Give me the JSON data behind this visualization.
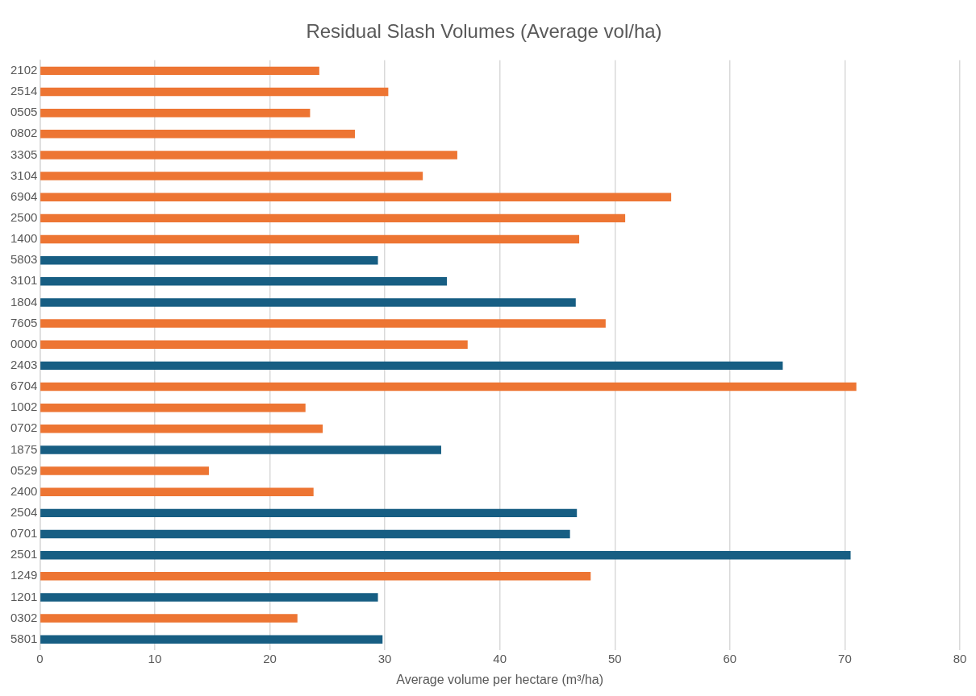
{
  "chart_data": {
    "type": "bar",
    "orientation": "horizontal",
    "title": "Residual Slash Volumes (Average vol/ha)",
    "xlabel": "Average volume per hectare (m³/ha)",
    "categories": [
      "2102",
      "2514",
      "0505",
      "0802",
      "3305",
      "3104",
      "6904",
      "2500",
      "1400",
      "5803",
      "3101",
      "1804",
      "7605",
      "0000",
      "2403",
      "6704",
      "1002",
      "0702",
      "1875",
      "0529",
      "2400",
      "2504",
      "0701",
      "2501",
      "1249",
      "1201",
      "0302",
      "5801"
    ],
    "values": [
      24.3,
      30.3,
      23.5,
      27.4,
      36.3,
      33.3,
      54.9,
      50.9,
      46.9,
      29.4,
      35.4,
      46.6,
      49.2,
      37.2,
      64.6,
      71.0,
      23.1,
      24.6,
      34.9,
      14.7,
      23.8,
      46.7,
      46.1,
      70.5,
      47.9,
      29.4,
      22.4,
      29.8
    ],
    "colors": [
      "#ed7533",
      "#ed7533",
      "#ed7533",
      "#ed7533",
      "#ed7533",
      "#ed7533",
      "#ed7533",
      "#ed7533",
      "#ed7533",
      "#175e83",
      "#175e83",
      "#175e83",
      "#ed7533",
      "#ed7533",
      "#175e83",
      "#ed7533",
      "#ed7533",
      "#ed7533",
      "#175e83",
      "#ed7533",
      "#ed7533",
      "#175e83",
      "#175e83",
      "#175e83",
      "#ed7533",
      "#175e83",
      "#ed7533",
      "#175e83"
    ],
    "xlim": [
      0,
      80
    ],
    "xticks": [
      0,
      10,
      20,
      30,
      40,
      50,
      60,
      70,
      80
    ],
    "grid": "x",
    "legend": false
  }
}
